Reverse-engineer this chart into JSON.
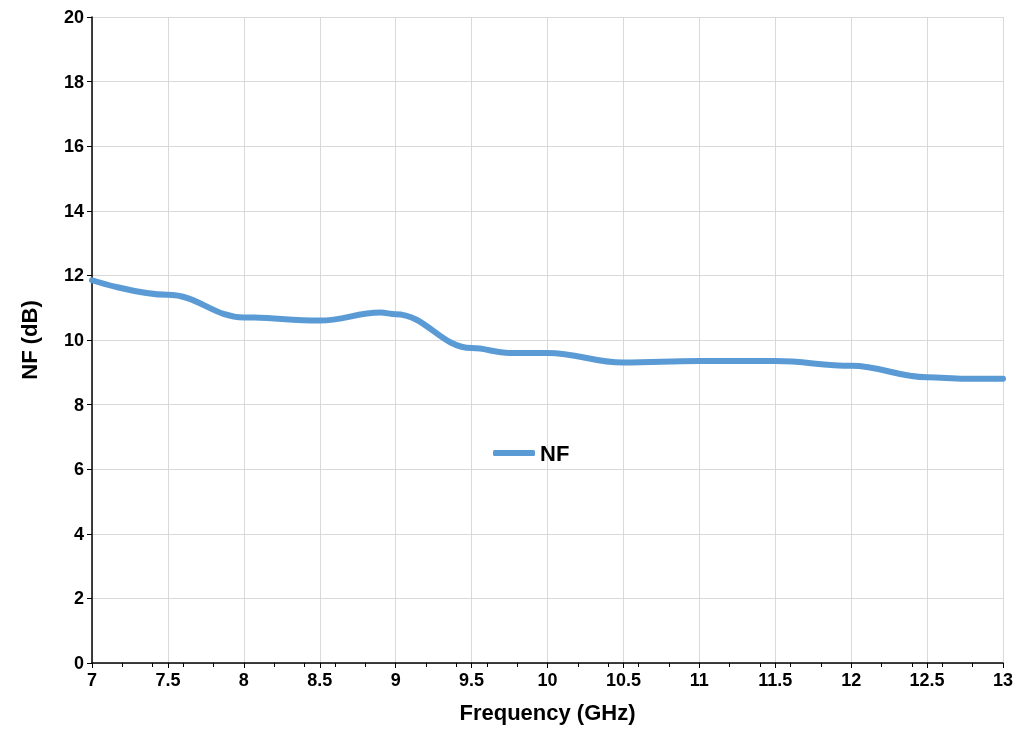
{
  "chart_data": {
    "type": "line",
    "xlabel": "Frequency (GHz)",
    "ylabel": "NF (dB)",
    "xlim": [
      7,
      13
    ],
    "xticks": [
      7,
      7.5,
      8,
      8.5,
      9,
      9.5,
      10,
      10.5,
      11,
      11.5,
      12,
      12.5,
      13
    ],
    "ylim": [
      0,
      20
    ],
    "yticks": [
      0,
      2,
      4,
      6,
      8,
      10,
      12,
      14,
      16,
      18,
      20
    ],
    "x": [
      7,
      7.5,
      8,
      8.5,
      8.9,
      9,
      9.5,
      9.75,
      10,
      10.5,
      11,
      11.5,
      12,
      12.5,
      12.75,
      13
    ],
    "series": [
      {
        "name": "NF",
        "color": "#5b9bd5",
        "values": [
          11.85,
          11.4,
          10.7,
          10.6,
          10.85,
          10.8,
          9.75,
          9.6,
          9.6,
          9.3,
          9.35,
          9.35,
          9.2,
          8.85,
          8.8,
          8.8
        ]
      }
    ],
    "grid": true,
    "legend": "center",
    "marker": "none",
    "line_style": "solid"
  }
}
